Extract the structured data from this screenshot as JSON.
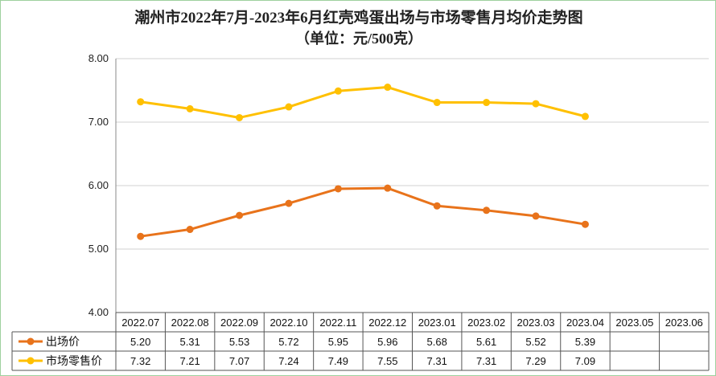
{
  "chart_data": {
    "type": "line",
    "title": "潮州市2022年7月-2023年6月红壳鸡蛋出场与市场零售月均价走势图",
    "subtitle": "（单位：元/500克）",
    "categories": [
      "2022.07",
      "2022.08",
      "2022.09",
      "2022.10",
      "2022.11",
      "2022.12",
      "2023.01",
      "2023.02",
      "2023.03",
      "2023.04",
      "2023.05",
      "2023.06"
    ],
    "ylim": [
      4.0,
      8.0
    ],
    "yticks": [
      "4.00",
      "5.00",
      "6.00",
      "7.00",
      "8.00"
    ],
    "grid": true,
    "legend_position": "data-table-left",
    "series": [
      {
        "name": "出场价",
        "color": "#e8731b",
        "values": [
          5.2,
          5.31,
          5.53,
          5.72,
          5.95,
          5.96,
          5.68,
          5.61,
          5.52,
          5.39,
          null,
          null
        ],
        "labels": [
          "5.20",
          "5.31",
          "5.53",
          "5.72",
          "5.95",
          "5.96",
          "5.68",
          "5.61",
          "5.52",
          "5.39",
          "",
          ""
        ]
      },
      {
        "name": "市场零售价",
        "color": "#ffc000",
        "values": [
          7.32,
          7.21,
          7.07,
          7.24,
          7.49,
          7.55,
          7.31,
          7.31,
          7.29,
          7.09,
          null,
          null
        ],
        "labels": [
          "7.32",
          "7.21",
          "7.07",
          "7.24",
          "7.49",
          "7.55",
          "7.31",
          "7.31",
          "7.29",
          "7.09",
          "",
          ""
        ]
      }
    ]
  }
}
